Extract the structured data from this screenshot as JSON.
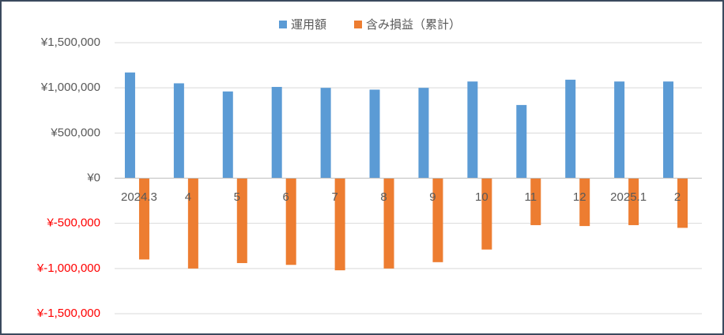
{
  "chart_data": {
    "type": "bar",
    "categories": [
      "2024.3",
      "4",
      "5",
      "6",
      "7",
      "8",
      "9",
      "10",
      "11",
      "12",
      "2025.1",
      "2"
    ],
    "series": [
      {
        "name": "運用額",
        "color": "#5b9bd5",
        "values": [
          1170000,
          1050000,
          960000,
          1010000,
          1000000,
          980000,
          1000000,
          1070000,
          810000,
          1090000,
          1070000,
          1070000
        ]
      },
      {
        "name": "含み損益（累計）",
        "color": "#ed7d31",
        "values": [
          -900000,
          -1000000,
          -940000,
          -960000,
          -1020000,
          -1000000,
          -930000,
          -790000,
          -520000,
          -530000,
          -520000,
          -550000
        ]
      }
    ],
    "ylim": [
      -1500000,
      1500000
    ],
    "yticks": [
      {
        "value": -1500000,
        "label": "¥-1,500,000"
      },
      {
        "value": -1000000,
        "label": "¥-1,000,000"
      },
      {
        "value": -500000,
        "label": "¥-500,000"
      },
      {
        "value": 0,
        "label": "¥0"
      },
      {
        "value": 500000,
        "label": "¥500,000"
      },
      {
        "value": 1000000,
        "label": "¥1,000,000"
      },
      {
        "value": 1500000,
        "label": "¥1,500,000"
      }
    ],
    "grid": true,
    "legend": "top"
  }
}
